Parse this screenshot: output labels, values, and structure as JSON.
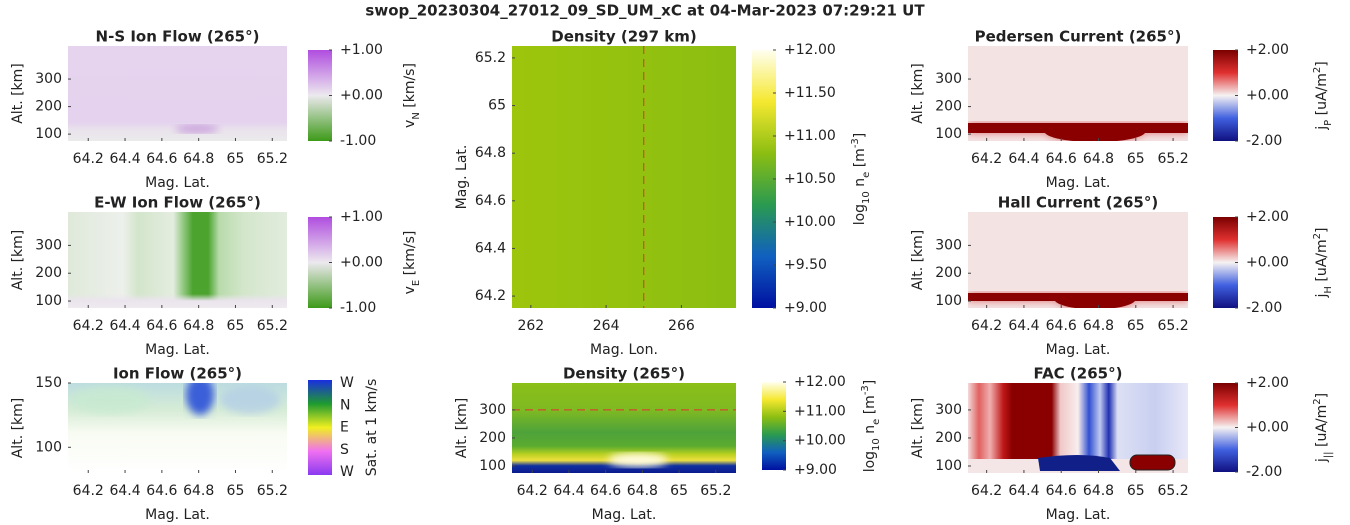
{
  "figure_title": "swop_20230304_27012_09_SD_UM_xC at 04-Mar-2023 07:29:21 UT",
  "chart_data": [
    {
      "type": "heatmap",
      "title": "N-S Ion Flow (265°)",
      "xlabel": "Mag. Lat.",
      "ylabel": "Alt. [km]",
      "xlim": [
        64.09,
        65.28
      ],
      "ylim": [
        75,
        420
      ],
      "xticks": [
        64.2,
        64.4,
        64.6,
        64.8,
        65,
        65.2
      ],
      "yticks": [
        100,
        200,
        300
      ],
      "colorbar": {
        "label": [
          {
            "text": "v"
          },
          {
            "text": "N",
            "shift": "sub"
          },
          {
            "text": " [km/s]"
          }
        ],
        "lim": [
          -1,
          1
        ],
        "ticks": [
          {
            "value": 1,
            "label": "+1.00"
          },
          {
            "value": 0,
            "label": "+0.00"
          },
          {
            "value": -1,
            "label": "-1.00"
          }
        ],
        "colormap": [
          "#b04de0",
          "#ece9ee",
          "#3c9a18"
        ]
      }
    },
    {
      "type": "heatmap",
      "title": "E-W Ion Flow (265°)",
      "xlabel": "Mag. Lat.",
      "ylabel": "Alt. [km]",
      "xlim": [
        64.09,
        65.28
      ],
      "ylim": [
        75,
        420
      ],
      "xticks": [
        64.2,
        64.4,
        64.6,
        64.8,
        65,
        65.2
      ],
      "yticks": [
        100,
        200,
        300
      ],
      "colorbar": {
        "label": [
          {
            "text": "v"
          },
          {
            "text": "E",
            "shift": "sub"
          },
          {
            "text": " [km/s]"
          }
        ],
        "lim": [
          -1,
          1
        ],
        "ticks": [
          {
            "value": 1,
            "label": "+1.00"
          },
          {
            "value": 0,
            "label": "+0.00"
          },
          {
            "value": -1,
            "label": "-1.00"
          }
        ],
        "colormap": [
          "#b04de0",
          "#ece9ee",
          "#3c9a18"
        ]
      }
    },
    {
      "type": "heatmap",
      "title": "Ion Flow (265°)",
      "xlabel": "Mag. Lat.",
      "ylabel": "Alt. [km]",
      "xlim": [
        64.09,
        65.28
      ],
      "ylim": [
        80,
        150
      ],
      "xticks": [
        64.2,
        64.4,
        64.6,
        64.8,
        65,
        65.2
      ],
      "yticks": [
        100,
        150
      ],
      "colorbar": {
        "label": [
          {
            "text": "Sat. at 1 km/s"
          }
        ],
        "ticks": [
          "W",
          "N",
          "E",
          "S",
          "W"
        ],
        "colormap": [
          "#1a2ee0",
          "#1f9a30",
          "#f0f020",
          "#f070f0",
          "#8a3af0"
        ]
      }
    },
    {
      "type": "heatmap",
      "title": "Density (297 km)",
      "xlabel": "Mag. Lon.",
      "ylabel": "Mag. Lat.",
      "xlim": [
        261.5,
        267.45
      ],
      "ylim": [
        64.15,
        65.25
      ],
      "xticks": [
        262,
        264,
        266
      ],
      "yticks": [
        64.2,
        64.4,
        64.6,
        64.8,
        65,
        65.2
      ],
      "vline": 265,
      "line_color": "#e03030",
      "colorbar": {
        "label": [
          {
            "text": "log"
          },
          {
            "text": "10",
            "shift": "sub"
          },
          {
            "text": " n"
          },
          {
            "text": "e",
            "shift": "sub"
          },
          {
            "text": " [m"
          },
          {
            "text": "-3",
            "shift": "super"
          },
          {
            "text": "]"
          }
        ],
        "lim": [
          9,
          12
        ],
        "ticks": [
          {
            "value": 12,
            "label": "+12.00"
          },
          {
            "value": 11.5,
            "label": "+11.50"
          },
          {
            "value": 11,
            "label": "+11.00"
          },
          {
            "value": 10.5,
            "label": "+10.50"
          },
          {
            "value": 10,
            "label": "+10.00"
          },
          {
            "value": 9.5,
            "label": "+9.50"
          },
          {
            "value": 9,
            "label": "+9.00"
          }
        ],
        "colormap": [
          "#fffff0",
          "#f5e830",
          "#8cbe12",
          "#2a9a50",
          "#1060c0",
          "#0010a0"
        ]
      }
    },
    {
      "type": "heatmap",
      "title": "Density (265°)",
      "xlabel": "Mag. Lat.",
      "ylabel": "Alt. [km]",
      "xlim": [
        64.09,
        65.31
      ],
      "ylim": [
        75,
        396
      ],
      "xticks": [
        64.2,
        64.4,
        64.6,
        64.8,
        65,
        65.2
      ],
      "yticks": [
        100,
        200,
        300
      ],
      "hline": 300,
      "line_color": "#e03030",
      "colorbar": {
        "label": [
          {
            "text": "log"
          },
          {
            "text": "10",
            "shift": "sub"
          },
          {
            "text": " n"
          },
          {
            "text": "e",
            "shift": "sub"
          },
          {
            "text": " [m"
          },
          {
            "text": "-3",
            "shift": "super"
          },
          {
            "text": "]"
          }
        ],
        "lim": [
          9,
          12
        ],
        "ticks": [
          {
            "value": 12,
            "label": "+12.00"
          },
          {
            "value": 11,
            "label": "+11.00"
          },
          {
            "value": 10,
            "label": "+10.00"
          },
          {
            "value": 9,
            "label": "+9.00"
          }
        ],
        "colormap": [
          "#fffff0",
          "#f5e830",
          "#8cbe12",
          "#2a9a50",
          "#1060c0",
          "#0010a0"
        ]
      }
    },
    {
      "type": "heatmap",
      "title": "Pedersen Current (265°)",
      "xlabel": "Mag. Lat.",
      "ylabel": "Alt. [km]",
      "xlim": [
        64.1,
        65.28
      ],
      "ylim": [
        75,
        420
      ],
      "xticks": [
        64.2,
        64.4,
        64.6,
        64.8,
        65,
        65.2
      ],
      "yticks": [
        100,
        200,
        300
      ],
      "colorbar": {
        "label": [
          {
            "text": "j"
          },
          {
            "text": "P",
            "shift": "sub"
          },
          {
            "text": " [uA/m"
          },
          {
            "text": "2",
            "shift": "super"
          },
          {
            "text": "]"
          }
        ],
        "lim": [
          -2,
          2
        ],
        "ticks": [
          {
            "value": 2,
            "label": "+2.00"
          },
          {
            "value": 0,
            "label": "+0.00"
          },
          {
            "value": -2,
            "label": "-2.00"
          }
        ],
        "colormap": [
          "#7a0000",
          "#e03030",
          "#f6f2f2",
          "#4060e0",
          "#101080"
        ]
      }
    },
    {
      "type": "heatmap",
      "title": "Hall Current (265°)",
      "xlabel": "Mag. Lat.",
      "ylabel": "Alt. [km]",
      "xlim": [
        64.1,
        65.28
      ],
      "ylim": [
        75,
        420
      ],
      "xticks": [
        64.2,
        64.4,
        64.6,
        64.8,
        65,
        65.2
      ],
      "yticks": [
        100,
        200,
        300
      ],
      "colorbar": {
        "label": [
          {
            "text": "j"
          },
          {
            "text": "H",
            "shift": "sub"
          },
          {
            "text": " [uA/m"
          },
          {
            "text": "2",
            "shift": "super"
          },
          {
            "text": "]"
          }
        ],
        "lim": [
          -2,
          2
        ],
        "ticks": [
          {
            "value": 2,
            "label": "+2.00"
          },
          {
            "value": 0,
            "label": "+0.00"
          },
          {
            "value": -2,
            "label": "-2.00"
          }
        ],
        "colormap": [
          "#7a0000",
          "#e03030",
          "#f6f2f2",
          "#4060e0",
          "#101080"
        ]
      }
    },
    {
      "type": "heatmap",
      "title": "FAC (265°)",
      "xlabel": "Mag. Lat.",
      "ylabel": "Alt. [km]",
      "xlim": [
        64.1,
        65.28
      ],
      "ylim": [
        75,
        396
      ],
      "xticks": [
        64.2,
        64.4,
        64.6,
        64.8,
        65,
        65.2
      ],
      "yticks": [
        100,
        200,
        300
      ],
      "colorbar": {
        "label": [
          {
            "text": "j"
          },
          {
            "text": "||",
            "shift": "sub"
          },
          {
            "text": " [uA/m"
          },
          {
            "text": "2",
            "shift": "super"
          },
          {
            "text": "]"
          }
        ],
        "lim": [
          -2,
          2
        ],
        "ticks": [
          {
            "value": 2,
            "label": "+2.00"
          },
          {
            "value": 0,
            "label": "+0.00"
          },
          {
            "value": -2,
            "label": "-2.00"
          }
        ],
        "colormap": [
          "#7a0000",
          "#e03030",
          "#f6f2f2",
          "#4060e0",
          "#101080"
        ]
      }
    }
  ]
}
